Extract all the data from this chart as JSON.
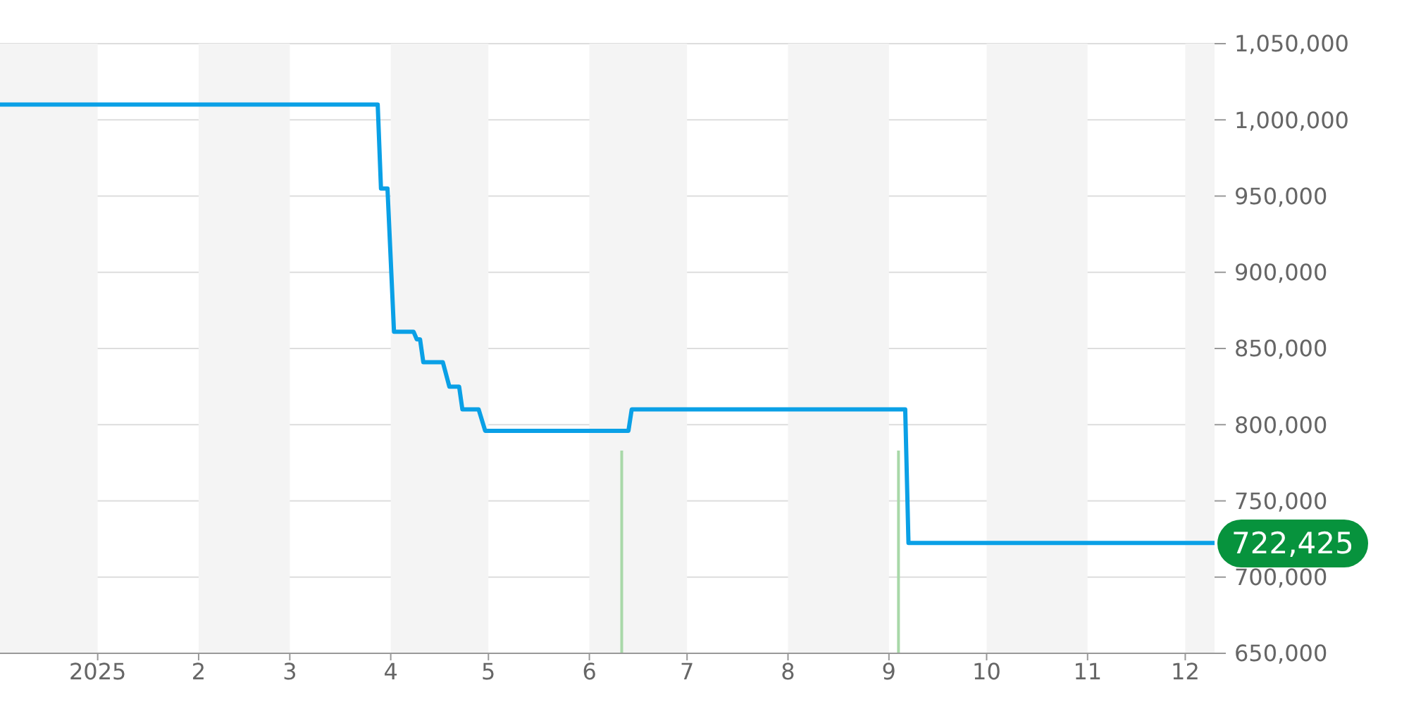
{
  "chart_data": {
    "type": "line",
    "xlim": [
      "2024-12-02",
      "2025-12-10"
    ],
    "xticks": [
      {
        "value": "2025-01-01",
        "label": "2025"
      },
      {
        "value": "2025-02-01",
        "label": "2"
      },
      {
        "value": "2025-03-01",
        "label": "3"
      },
      {
        "value": "2025-04-01",
        "label": "4"
      },
      {
        "value": "2025-05-01",
        "label": "5"
      },
      {
        "value": "2025-06-01",
        "label": "6"
      },
      {
        "value": "2025-07-01",
        "label": "7"
      },
      {
        "value": "2025-08-01",
        "label": "8"
      },
      {
        "value": "2025-09-01",
        "label": "9"
      },
      {
        "value": "2025-10-01",
        "label": "10"
      },
      {
        "value": "2025-11-01",
        "label": "11"
      },
      {
        "value": "2025-12-01",
        "label": "12"
      }
    ],
    "ylim": [
      650000,
      1050000
    ],
    "yticks": [
      {
        "value": 650000,
        "label": "650,000"
      },
      {
        "value": 700000,
        "label": "700,000"
      },
      {
        "value": 750000,
        "label": "750,000"
      },
      {
        "value": 800000,
        "label": "800,000"
      },
      {
        "value": 850000,
        "label": "850,000"
      },
      {
        "value": 900000,
        "label": "900,000"
      },
      {
        "value": 950000,
        "label": "950,000"
      },
      {
        "value": 1000000,
        "label": "1,000,000"
      },
      {
        "value": 1050000,
        "label": "1,050,000"
      }
    ],
    "grid": "y",
    "marker": "none",
    "line_style": "solid",
    "series": [
      {
        "color": "#0aa0e6",
        "x": [
          "2024-12-02",
          "2025-03-28",
          "2025-03-29",
          "2025-03-31",
          "2025-04-02",
          "2025-04-08",
          "2025-04-09",
          "2025-04-10",
          "2025-04-11",
          "2025-04-17",
          "2025-04-19",
          "2025-04-22",
          "2025-04-23",
          "2025-04-28",
          "2025-04-30",
          "2025-06-13",
          "2025-06-14",
          "2025-09-06",
          "2025-09-07",
          "2025-12-10"
        ],
        "values": [
          1010000,
          1010000,
          955000,
          955000,
          861000,
          861000,
          856000,
          856000,
          841000,
          841000,
          825000,
          825000,
          810000,
          810000,
          796000,
          796000,
          810000,
          810000,
          722425,
          722425
        ]
      },
      {
        "type": "bar",
        "color": "#a8d8a8",
        "x": [
          "2025-06-11",
          "2025-09-04"
        ],
        "values": [
          783000,
          783000
        ]
      }
    ],
    "bands": [
      {
        "axis": "x",
        "from": "2024-12-02",
        "to": "2025-01-01",
        "color": "#f4f4f4"
      },
      {
        "axis": "x",
        "from": "2025-02-01",
        "to": "2025-03-01",
        "color": "#f4f4f4"
      },
      {
        "axis": "x",
        "from": "2025-04-01",
        "to": "2025-05-01",
        "color": "#f4f4f4"
      },
      {
        "axis": "x",
        "from": "2025-06-01",
        "to": "2025-07-01",
        "color": "#f4f4f4"
      },
      {
        "axis": "x",
        "from": "2025-08-01",
        "to": "2025-09-01",
        "color": "#f4f4f4"
      },
      {
        "axis": "x",
        "from": "2025-10-01",
        "to": "2025-11-01",
        "color": "#f4f4f4"
      },
      {
        "axis": "x",
        "from": "2025-12-01",
        "to": "2025-12-10",
        "color": "#f4f4f4"
      }
    ],
    "annotations": [
      {
        "text": "722,425",
        "x": "2025-12-10",
        "y": 722425
      }
    ]
  }
}
